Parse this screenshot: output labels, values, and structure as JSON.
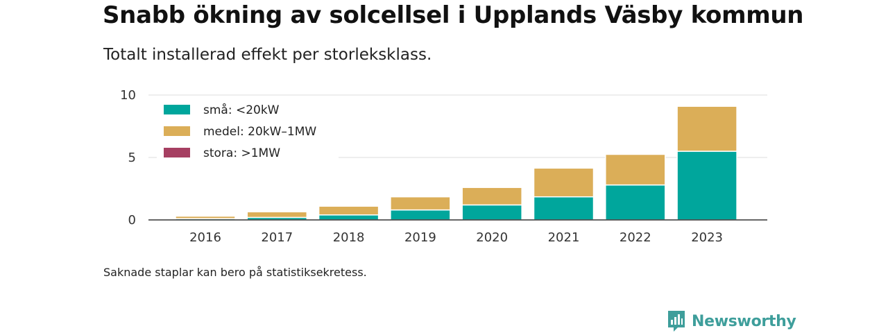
{
  "title": "Snabb ökning av solcellsel i Upplands Väsby kommun",
  "subtitle": "Totalt installerad effekt per storleksklass.",
  "note": "Saknade staplar kan bero på statistiksekretess.",
  "brand": {
    "name": "Newsworthy",
    "color": "#3e9e9b",
    "icon": "newsworthy-logo-icon"
  },
  "chart_data": {
    "type": "bar",
    "stacked": true,
    "title": "Snabb ökning av solcellsel i Upplands Väsby kommun",
    "subtitle": "Totalt installerad effekt per storleksklass.",
    "xlabel": "",
    "ylabel": "",
    "categories": [
      "2016",
      "2017",
      "2018",
      "2019",
      "2020",
      "2021",
      "2022",
      "2023"
    ],
    "ylim": [
      0,
      10
    ],
    "yticks": [
      0,
      5,
      10
    ],
    "grid": true,
    "legend_position": "top-left",
    "series": [
      {
        "name": "små: <20kW",
        "color": "#00a69c",
        "values": [
          0.1,
          0.2,
          0.4,
          0.8,
          1.2,
          1.85,
          2.8,
          5.5
        ]
      },
      {
        "name": "medel: 20kW–1MW",
        "color": "#dbae58",
        "values": [
          0.2,
          0.45,
          0.7,
          1.05,
          1.4,
          2.3,
          2.45,
          3.6
        ]
      },
      {
        "name": "stora: >1MW",
        "color": "#a63f62",
        "values": [
          0,
          0,
          0,
          0,
          0,
          0,
          0,
          0
        ]
      }
    ]
  }
}
